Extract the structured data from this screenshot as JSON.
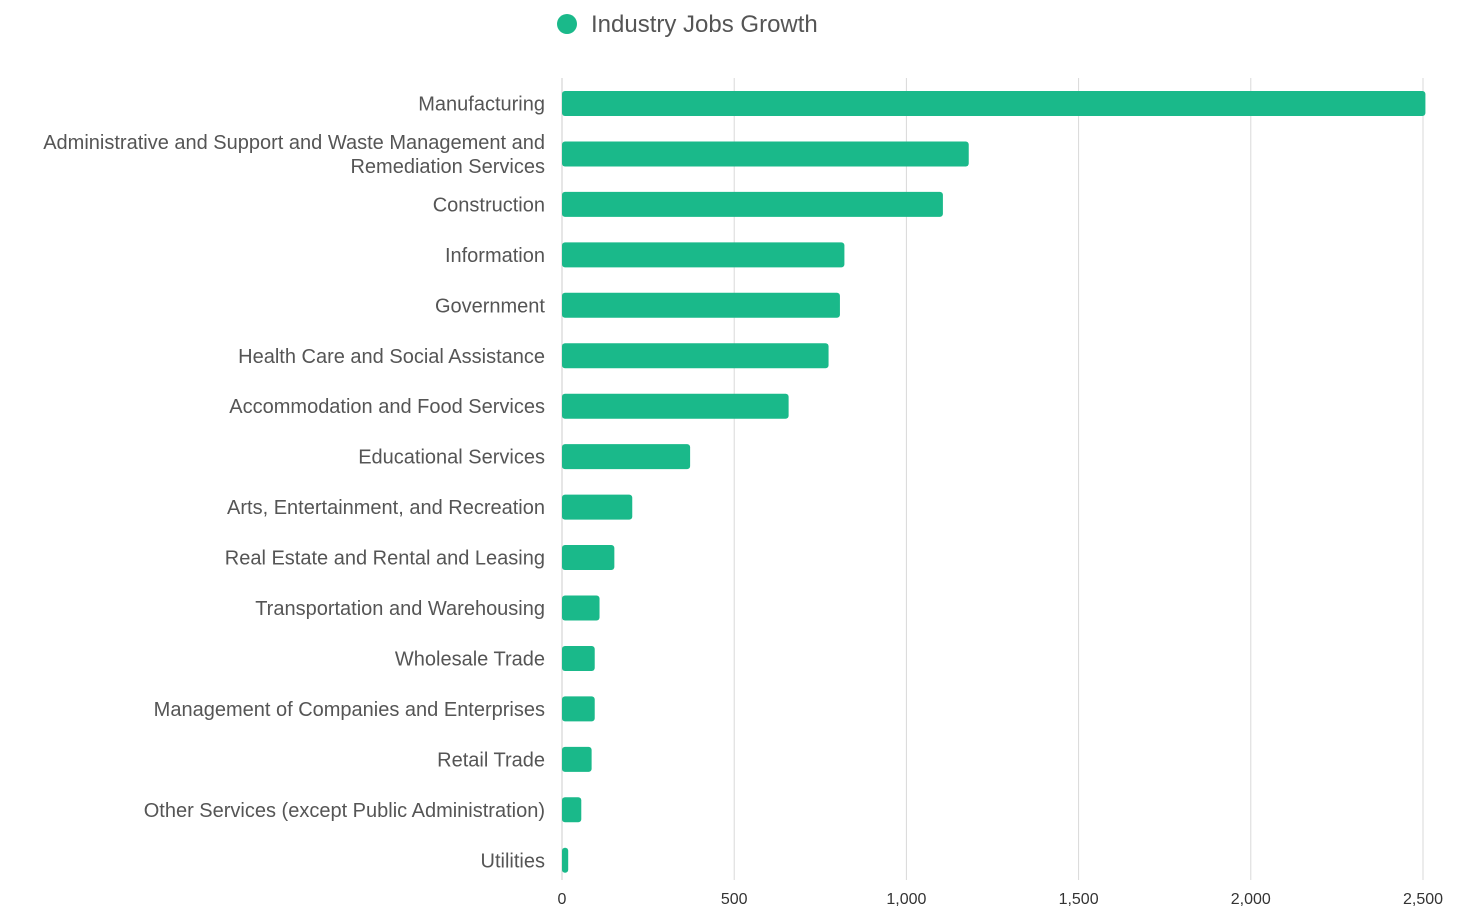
{
  "chart_data": {
    "type": "bar",
    "orientation": "horizontal",
    "title": "",
    "xlabel": "",
    "ylabel": "",
    "legend_position": "top-center",
    "grid": true,
    "xlim": [
      0,
      2500
    ],
    "x_ticks": [
      0,
      500,
      1000,
      1500,
      2000,
      2500
    ],
    "x_tick_labels": [
      "0",
      "500",
      "1,000",
      "1,500",
      "2,000",
      "2,500"
    ],
    "categories": [
      "Manufacturing",
      "Administrative and Support and Waste Management and Remediation Services",
      "Construction",
      "Information",
      "Government",
      "Health Care and Social Assistance",
      "Accommodation and Food Services",
      "Educational Services",
      "Arts, Entertainment, and Recreation",
      "Real Estate and Rental and Leasing",
      "Transportation and Warehousing",
      "Wholesale Trade",
      "Management of Companies and Enterprises",
      "Retail Trade",
      "Other Services (except Public Administration)",
      "Utilities"
    ],
    "category_label_lines": [
      [
        "Manufacturing"
      ],
      [
        "Administrative and Support and Waste Management and",
        "Remediation Services"
      ],
      [
        "Construction"
      ],
      [
        "Information"
      ],
      [
        "Government"
      ],
      [
        "Health Care and Social Assistance"
      ],
      [
        "Accommodation and Food Services"
      ],
      [
        "Educational Services"
      ],
      [
        "Arts, Entertainment, and Recreation"
      ],
      [
        "Real Estate and Rental and Leasing"
      ],
      [
        "Transportation and Warehousing"
      ],
      [
        "Wholesale Trade"
      ],
      [
        "Management of Companies and Enterprises"
      ],
      [
        "Retail Trade"
      ],
      [
        "Other Services (except Public Administration)"
      ],
      [
        "Utilities"
      ]
    ],
    "series": [
      {
        "name": "Industry Jobs Growth",
        "color": "#1ab98a",
        "values": [
          2507,
          1181,
          1106,
          820,
          807,
          774,
          658,
          372,
          204,
          152,
          109,
          95,
          95,
          86,
          56,
          18
        ]
      }
    ]
  },
  "colors": {
    "gridline": "#d9d9d9",
    "axis_line": "#cccccc",
    "label_text": "#555555",
    "tick_text": "#333333"
  }
}
